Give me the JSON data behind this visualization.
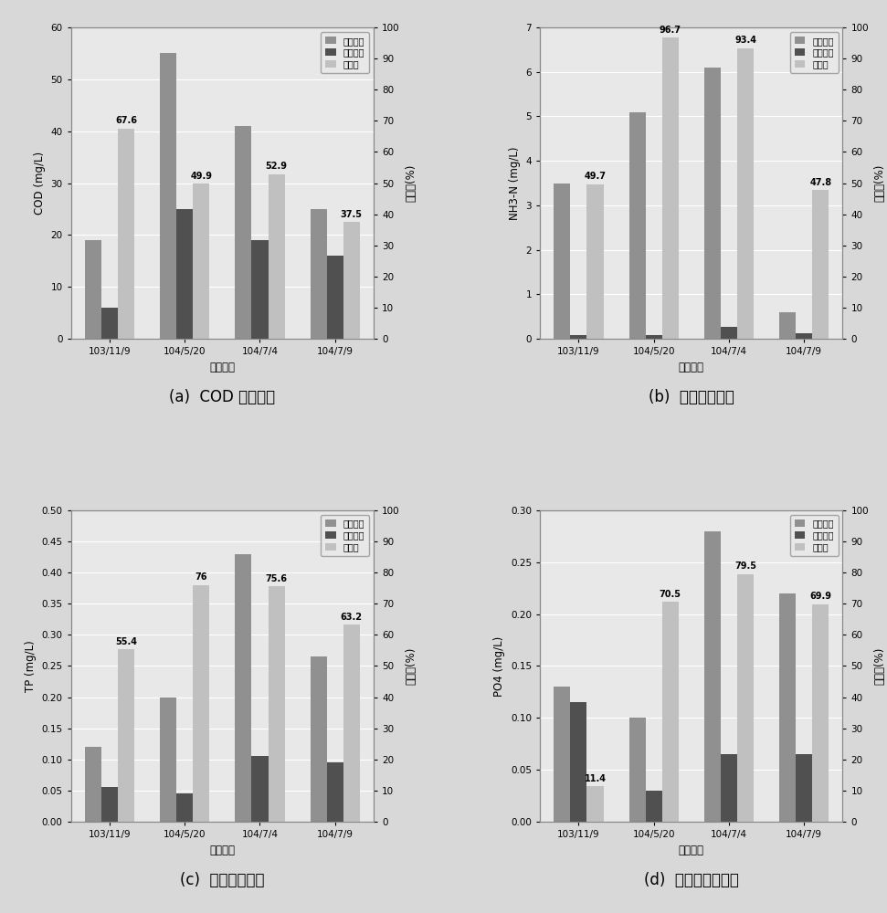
{
  "categories": [
    "103/11/9",
    "104/5/20",
    "104/7/4",
    "104/7/9"
  ],
  "xlabel": "采样日期",
  "legend_labels": [
    "入流浓度",
    "出流浓度",
    "去除率"
  ],
  "right_ylabel": "去除率(%)",
  "charts": {
    "a": {
      "title": "(a)  COD 去除成效",
      "ylabel": "COD (mg/L)",
      "ylim_left": [
        0,
        60
      ],
      "ylim_right": [
        0,
        100
      ],
      "yticks_left": [
        0,
        10,
        20,
        30,
        40,
        50,
        60
      ],
      "yticks_right": [
        0,
        10,
        20,
        30,
        40,
        50,
        60,
        70,
        80,
        90,
        100
      ],
      "inflow": [
        19.0,
        55.0,
        41.0,
        25.0
      ],
      "outflow": [
        6.0,
        25.0,
        19.0,
        16.0
      ],
      "rate": [
        67.6,
        49.9,
        52.9,
        37.5
      ],
      "rate_labels": [
        "67.6",
        "49.9",
        "52.9",
        "37.5"
      ]
    },
    "b": {
      "title": "(b)  氨氮去除成效",
      "ylabel": "NH3-N (mg/L)",
      "ylim_left": [
        0,
        7
      ],
      "ylim_right": [
        0,
        100
      ],
      "yticks_left": [
        0,
        1,
        2,
        3,
        4,
        5,
        6,
        7
      ],
      "yticks_right": [
        0,
        10,
        20,
        30,
        40,
        50,
        60,
        70,
        80,
        90,
        100
      ],
      "inflow": [
        3.5,
        5.1,
        6.1,
        0.6
      ],
      "outflow": [
        0.08,
        0.08,
        0.28,
        0.13
      ],
      "rate": [
        49.7,
        96.7,
        93.4,
        47.8
      ],
      "rate_labels": [
        "49.7",
        "96.7",
        "93.4",
        "47.8"
      ]
    },
    "c": {
      "title": "(c)  总磷去除成效",
      "ylabel": "TP (mg/L)",
      "ylim_left": [
        0,
        0.5
      ],
      "ylim_right": [
        0,
        100
      ],
      "yticks_left": [
        0,
        0.05,
        0.1,
        0.15,
        0.2,
        0.25,
        0.3,
        0.35,
        0.4,
        0.45,
        0.5
      ],
      "yticks_right": [
        0,
        10,
        20,
        30,
        40,
        50,
        60,
        70,
        80,
        90,
        100
      ],
      "inflow": [
        0.12,
        0.2,
        0.43,
        0.265
      ],
      "outflow": [
        0.055,
        0.045,
        0.105,
        0.095
      ],
      "rate": [
        55.4,
        76.0,
        75.6,
        63.2
      ],
      "rate_labels": [
        "55.4",
        "76",
        "75.6",
        "63.2"
      ]
    },
    "d": {
      "title": "(d)  磷酸盐去除成效",
      "ylabel": "PO4 (mg/L)",
      "ylim_left": [
        0,
        0.3
      ],
      "ylim_right": [
        0,
        100
      ],
      "yticks_left": [
        0,
        0.05,
        0.1,
        0.15,
        0.2,
        0.25,
        0.3
      ],
      "yticks_right": [
        0,
        10,
        20,
        30,
        40,
        50,
        60,
        70,
        80,
        90,
        100
      ],
      "inflow": [
        0.13,
        0.1,
        0.28,
        0.22
      ],
      "outflow": [
        0.115,
        0.03,
        0.065,
        0.065
      ],
      "rate": [
        11.4,
        70.5,
        79.5,
        69.9
      ],
      "rate_labels": [
        "11.4",
        "70.5",
        "79.5",
        "69.9"
      ]
    }
  },
  "color_inflow": "#909090",
  "color_outflow": "#505050",
  "color_rate": "#c0c0c0",
  "bar_width": 0.22,
  "background_color": "#d8d8d8",
  "plot_background": "#e8e8e8",
  "border_color": "#888888"
}
